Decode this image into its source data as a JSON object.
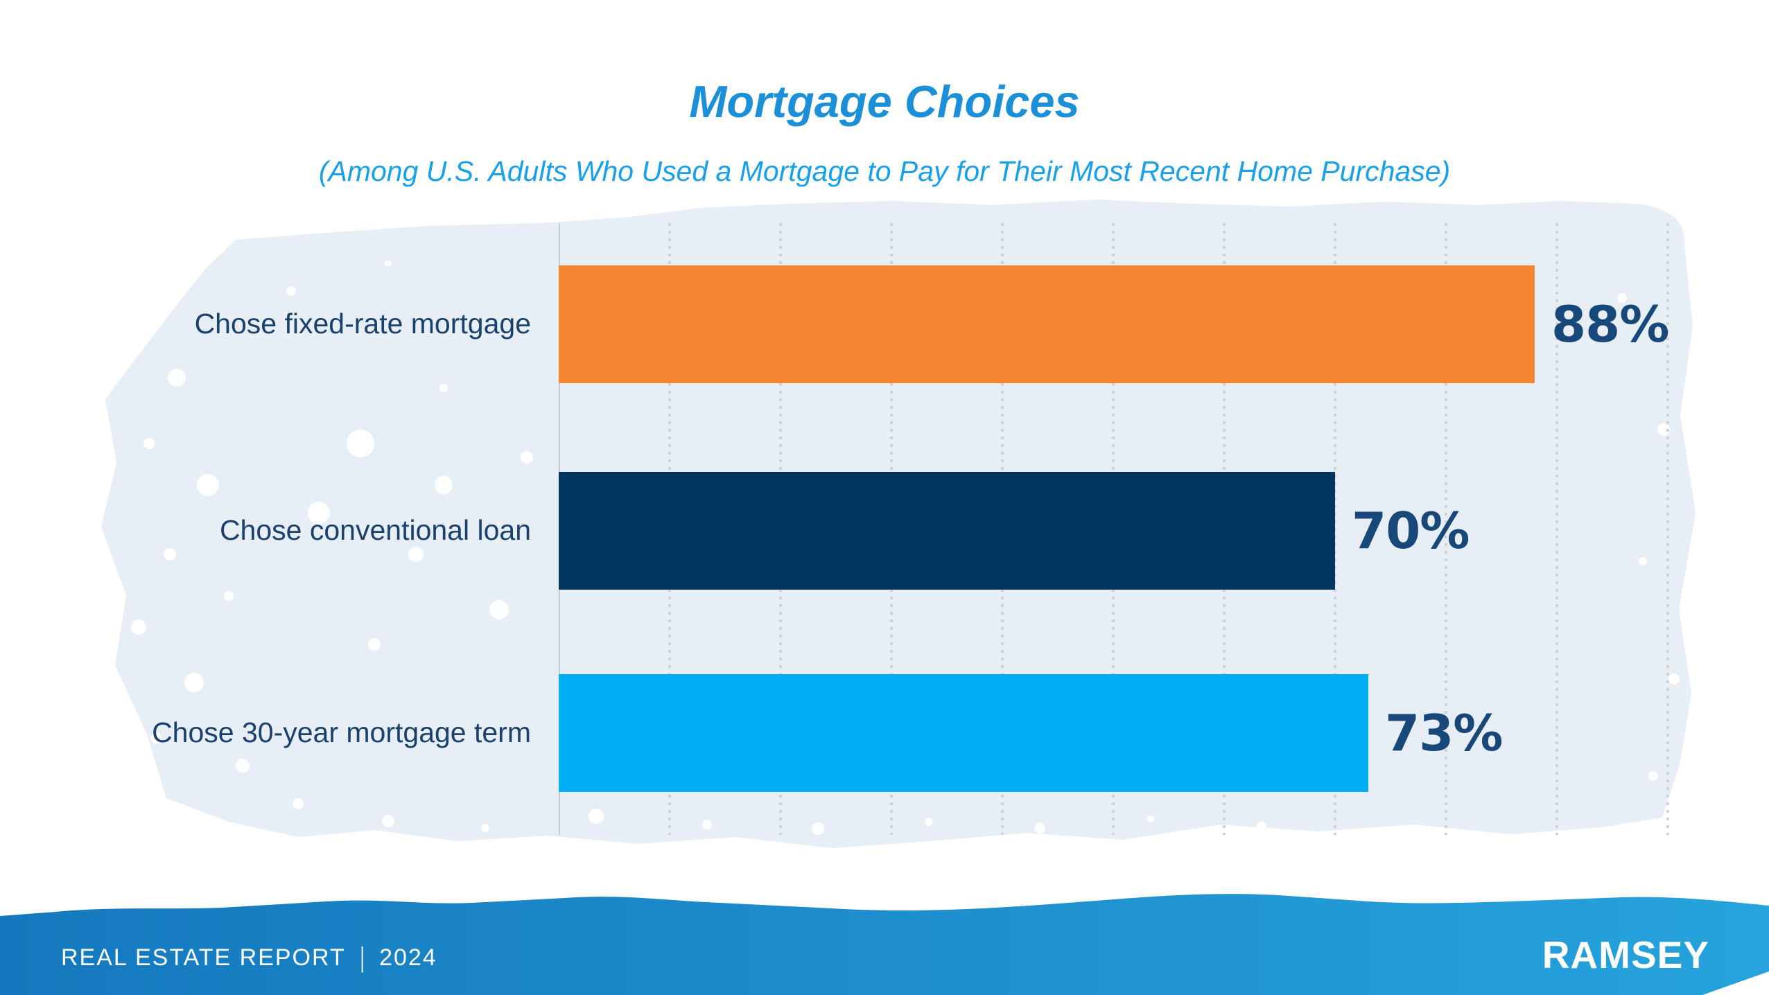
{
  "title": "Mortgage Choices",
  "subtitle": "(Among U.S. Adults Who Used a Mortgage to Pay for Their Most Recent Home Purchase)",
  "chart_data": {
    "type": "bar",
    "orientation": "horizontal",
    "title": "Mortgage Choices",
    "subtitle": "(Among U.S. Adults Who Used a Mortgage to Pay for Their Most Recent Home Purchase)",
    "categories": [
      "Chose fixed-rate mortgage",
      "Chose conventional loan",
      "Chose 30-year mortgage term"
    ],
    "values": [
      88,
      70,
      73
    ],
    "value_labels": [
      "88%",
      "70%",
      "73%"
    ],
    "series_colors": [
      "#F58433",
      "#003560",
      "#00AEF3"
    ],
    "xlim": [
      0,
      100
    ],
    "gridline_interval_pct": 10,
    "gridline_style": "dotted-vertical",
    "legend": "none"
  },
  "footer": {
    "report_title": "REAL ESTATE REPORT",
    "divider": "|",
    "year": "2024",
    "brand": "RAMSEY"
  },
  "colors": {
    "title_blue": "#1C8FD9",
    "subtitle_blue": "#18A0E8",
    "label_navy": "#1A406C",
    "value_navy": "#18477A",
    "bar_orange": "#F58433",
    "bar_navy": "#003560",
    "bar_lightblue": "#00AEF3",
    "brush_bg": "#E7EEF5",
    "gridline_gray": "#D2D2D2",
    "axis_gray": "#C9CDD2",
    "footer_blue_left": "#1578BE",
    "footer_blue_right": "#26A3DC",
    "footer_text_white": "#FFFFFF"
  }
}
